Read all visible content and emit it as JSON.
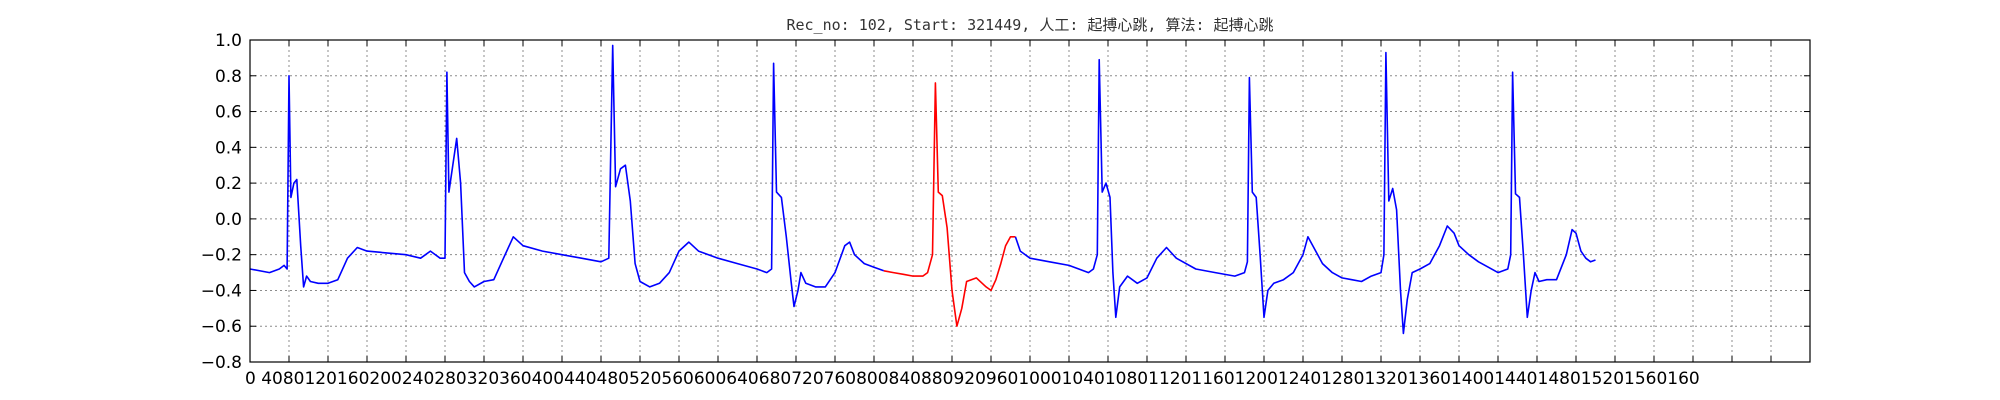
{
  "chart_data": {
    "type": "line",
    "title": "Rec_no: 102, Start: 321449, 人工: 起搏心跳, 算法: 起搏心跳",
    "xlabel": "",
    "ylabel": "",
    "xlim": [
      0,
      1600
    ],
    "ylim": [
      -0.8,
      1.0
    ],
    "grid": true,
    "x_ticks": [
      0,
      40,
      80,
      120,
      160,
      200,
      240,
      280,
      320,
      360,
      400,
      440,
      480,
      520,
      560,
      600,
      640,
      680,
      720,
      760,
      800,
      840,
      880,
      920,
      960,
      1000,
      1040,
      1080,
      1120,
      1160,
      1200,
      1240,
      1280,
      1320,
      1360,
      1400,
      1440,
      1480,
      1520,
      1560,
      1600
    ],
    "x_tick_labels": "0 4080120160200240280320360400440480520560600640680720760800840880920960100010401080112011601200124012801320136014001440148015201560160",
    "y_ticks": [
      1.0,
      0.8,
      0.6,
      0.4,
      0.2,
      0.0,
      -0.2,
      -0.4,
      -0.6,
      -0.8
    ],
    "y_tick_labels": [
      "1.0",
      "0.8",
      "0.6",
      "0.4",
      "0.2",
      "0.0",
      "−0.2",
      "−0.4",
      "−0.6",
      "−0.8"
    ],
    "colors": {
      "normal": "#0000ff",
      "highlight": "#ff0000",
      "grid": "#8c8c8c",
      "frame": "#000000"
    },
    "series": [
      {
        "color": "#0000ff",
        "points": [
          [
            0,
            -0.28
          ],
          [
            20,
            -0.3
          ],
          [
            30,
            -0.28
          ],
          [
            35,
            -0.26
          ],
          [
            38,
            -0.28
          ],
          [
            40,
            0.8
          ],
          [
            42,
            0.12
          ],
          [
            45,
            0.2
          ],
          [
            48,
            0.22
          ],
          [
            52,
            -0.15
          ],
          [
            55,
            -0.38
          ],
          [
            58,
            -0.32
          ],
          [
            62,
            -0.35
          ],
          [
            70,
            -0.36
          ],
          [
            80,
            -0.36
          ],
          [
            90,
            -0.34
          ],
          [
            100,
            -0.22
          ],
          [
            110,
            -0.16
          ],
          [
            120,
            -0.18
          ],
          [
            140,
            -0.19
          ],
          [
            160,
            -0.2
          ],
          [
            175,
            -0.22
          ],
          [
            180,
            -0.2
          ],
          [
            185,
            -0.18
          ],
          [
            195,
            -0.22
          ],
          [
            200,
            -0.22
          ],
          [
            202,
            0.82
          ],
          [
            204,
            0.15
          ],
          [
            208,
            0.3
          ],
          [
            212,
            0.45
          ],
          [
            216,
            0.2
          ],
          [
            220,
            -0.3
          ],
          [
            225,
            -0.35
          ],
          [
            230,
            -0.38
          ],
          [
            240,
            -0.35
          ],
          [
            250,
            -0.34
          ],
          [
            260,
            -0.22
          ],
          [
            270,
            -0.1
          ],
          [
            280,
            -0.15
          ],
          [
            300,
            -0.18
          ],
          [
            320,
            -0.2
          ],
          [
            340,
            -0.22
          ],
          [
            360,
            -0.24
          ],
          [
            368,
            -0.22
          ],
          [
            372,
            0.97
          ],
          [
            375,
            0.18
          ],
          [
            380,
            0.28
          ],
          [
            385,
            0.3
          ],
          [
            390,
            0.1
          ],
          [
            395,
            -0.25
          ],
          [
            400,
            -0.35
          ],
          [
            410,
            -0.38
          ],
          [
            420,
            -0.36
          ],
          [
            430,
            -0.3
          ],
          [
            440,
            -0.18
          ],
          [
            450,
            -0.13
          ],
          [
            460,
            -0.18
          ],
          [
            480,
            -0.22
          ],
          [
            500,
            -0.25
          ],
          [
            520,
            -0.28
          ],
          [
            530,
            -0.3
          ],
          [
            535,
            -0.28
          ],
          [
            537,
            0.87
          ],
          [
            540,
            0.15
          ],
          [
            545,
            0.12
          ],
          [
            550,
            -0.1
          ],
          [
            555,
            -0.35
          ],
          [
            558,
            -0.49
          ],
          [
            562,
            -0.4
          ],
          [
            565,
            -0.3
          ],
          [
            570,
            -0.36
          ],
          [
            580,
            -0.38
          ],
          [
            590,
            -0.38
          ],
          [
            600,
            -0.3
          ],
          [
            610,
            -0.15
          ],
          [
            615,
            -0.13
          ],
          [
            620,
            -0.2
          ],
          [
            630,
            -0.25
          ],
          [
            640,
            -0.27
          ],
          [
            650,
            -0.29
          ]
        ]
      },
      {
        "color": "#ff0000",
        "points": [
          [
            650,
            -0.29
          ],
          [
            660,
            -0.3
          ],
          [
            670,
            -0.31
          ],
          [
            680,
            -0.32
          ],
          [
            690,
            -0.32
          ],
          [
            695,
            -0.3
          ],
          [
            700,
            -0.2
          ],
          [
            703,
            0.76
          ],
          [
            706,
            0.15
          ],
          [
            710,
            0.13
          ],
          [
            715,
            -0.05
          ],
          [
            720,
            -0.4
          ],
          [
            725,
            -0.6
          ],
          [
            730,
            -0.5
          ],
          [
            735,
            -0.35
          ],
          [
            745,
            -0.33
          ],
          [
            755,
            -0.38
          ],
          [
            760,
            -0.4
          ],
          [
            765,
            -0.34
          ],
          [
            770,
            -0.25
          ],
          [
            775,
            -0.15
          ],
          [
            780,
            -0.1
          ],
          [
            785,
            -0.1
          ]
        ]
      },
      {
        "color": "#0000ff",
        "points": [
          [
            785,
            -0.1
          ],
          [
            790,
            -0.18
          ],
          [
            800,
            -0.22
          ],
          [
            820,
            -0.24
          ],
          [
            840,
            -0.26
          ],
          [
            850,
            -0.28
          ],
          [
            860,
            -0.3
          ],
          [
            865,
            -0.28
          ],
          [
            869,
            -0.2
          ],
          [
            871,
            0.89
          ],
          [
            874,
            0.15
          ],
          [
            878,
            0.2
          ],
          [
            882,
            0.12
          ],
          [
            885,
            -0.3
          ],
          [
            888,
            -0.55
          ],
          [
            892,
            -0.38
          ],
          [
            900,
            -0.32
          ],
          [
            910,
            -0.36
          ],
          [
            920,
            -0.33
          ],
          [
            930,
            -0.22
          ],
          [
            940,
            -0.16
          ],
          [
            950,
            -0.22
          ],
          [
            970,
            -0.28
          ],
          [
            990,
            -0.3
          ],
          [
            1010,
            -0.32
          ],
          [
            1020,
            -0.3
          ],
          [
            1023,
            -0.24
          ],
          [
            1025,
            0.79
          ],
          [
            1028,
            0.15
          ],
          [
            1032,
            0.12
          ],
          [
            1036,
            -0.2
          ],
          [
            1040,
            -0.55
          ],
          [
            1044,
            -0.4
          ],
          [
            1050,
            -0.36
          ],
          [
            1060,
            -0.34
          ],
          [
            1070,
            -0.3
          ],
          [
            1080,
            -0.2
          ],
          [
            1085,
            -0.1
          ],
          [
            1090,
            -0.15
          ],
          [
            1100,
            -0.25
          ],
          [
            1110,
            -0.3
          ],
          [
            1120,
            -0.33
          ],
          [
            1130,
            -0.34
          ],
          [
            1140,
            -0.35
          ],
          [
            1150,
            -0.32
          ],
          [
            1160,
            -0.3
          ],
          [
            1163,
            -0.2
          ],
          [
            1165,
            0.93
          ],
          [
            1168,
            0.1
          ],
          [
            1172,
            0.17
          ],
          [
            1176,
            0.05
          ],
          [
            1180,
            -0.4
          ],
          [
            1183,
            -0.64
          ],
          [
            1187,
            -0.45
          ],
          [
            1192,
            -0.3
          ],
          [
            1200,
            -0.28
          ],
          [
            1210,
            -0.25
          ],
          [
            1220,
            -0.15
          ],
          [
            1228,
            -0.04
          ],
          [
            1235,
            -0.08
          ],
          [
            1240,
            -0.15
          ],
          [
            1250,
            -0.2
          ],
          [
            1260,
            -0.24
          ],
          [
            1270,
            -0.27
          ],
          [
            1280,
            -0.3
          ],
          [
            1290,
            -0.28
          ],
          [
            1293,
            -0.2
          ],
          [
            1295,
            0.82
          ],
          [
            1298,
            0.14
          ],
          [
            1302,
            0.12
          ],
          [
            1306,
            -0.2
          ],
          [
            1310,
            -0.55
          ],
          [
            1314,
            -0.4
          ],
          [
            1318,
            -0.3
          ],
          [
            1322,
            -0.35
          ],
          [
            1330,
            -0.34
          ],
          [
            1340,
            -0.34
          ],
          [
            1350,
            -0.2
          ],
          [
            1356,
            -0.06
          ],
          [
            1360,
            -0.08
          ],
          [
            1365,
            -0.18
          ],
          [
            1370,
            -0.22
          ],
          [
            1375,
            -0.24
          ],
          [
            1380,
            -0.23
          ]
        ]
      }
    ]
  }
}
